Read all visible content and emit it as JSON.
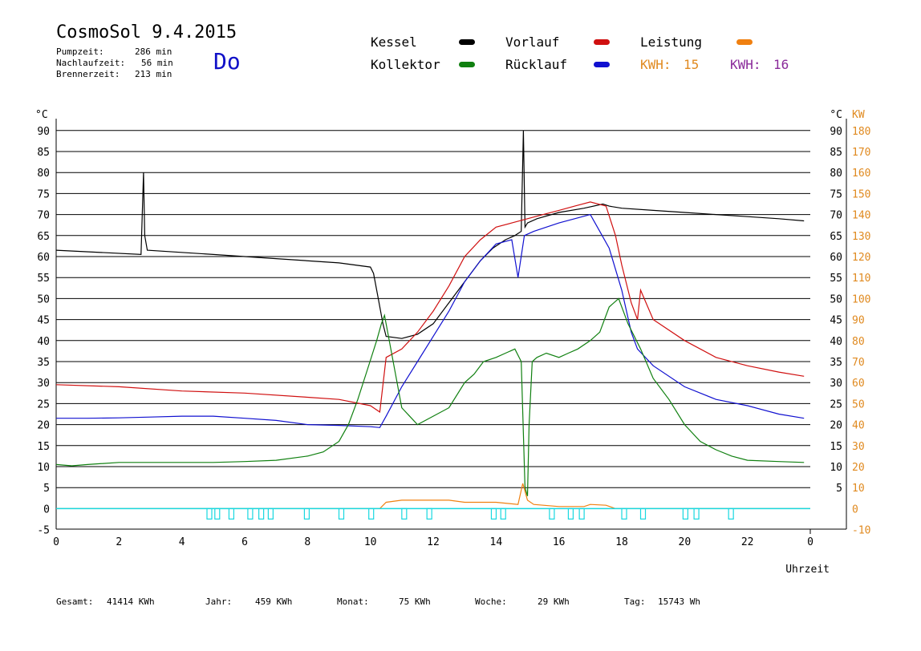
{
  "header": {
    "title": "CosmoSol 9.4.2015",
    "weekday": "Do",
    "stats": [
      {
        "label": "Pumpzeit:",
        "value": "286 min"
      },
      {
        "label": "Nachlaufzeit:",
        "value": "56 min"
      },
      {
        "label": "Brennerzeit:",
        "value": "213 min"
      }
    ]
  },
  "legend": {
    "items": [
      {
        "label": "Kessel",
        "color": "#000000"
      },
      {
        "label": "Kollektor",
        "color": "#108010"
      },
      {
        "label": "Vorlauf",
        "color": "#d01010"
      },
      {
        "label": "Rücklauf",
        "color": "#1010d0"
      },
      {
        "label": "Leistung",
        "color": "#f08010"
      }
    ],
    "kwh": [
      {
        "label": "KWH:",
        "value": "15",
        "color": "#e08a20"
      },
      {
        "label": "KWH:",
        "value": "16",
        "color": "#8a2a9a"
      }
    ]
  },
  "footer": {
    "items": [
      {
        "label": "Gesamt:",
        "value": "41414 KWh"
      },
      {
        "label": "Jahr:",
        "value": "459 KWh"
      },
      {
        "label": "Monat:",
        "value": "75 KWh"
      },
      {
        "label": "Woche:",
        "value": "29 KWh"
      },
      {
        "label": "Tag:",
        "value": "15743 Wh"
      }
    ]
  },
  "chart_data": {
    "type": "line",
    "xlabel": "Uhrzeit",
    "ylabel_left": "°C",
    "ylabel_right_temp": "°C",
    "ylabel_right_power": "KW",
    "xlim": [
      0,
      24
    ],
    "ylim": [
      -5,
      93
    ],
    "x_ticks": [
      "0",
      "2",
      "4",
      "6",
      "8",
      "10",
      "12",
      "14",
      "16",
      "18",
      "20",
      "22",
      "0"
    ],
    "y_ticks_left": [
      "-5",
      "0",
      "5",
      "10",
      "15",
      "20",
      "25",
      "30",
      "35",
      "40",
      "45",
      "50",
      "55",
      "60",
      "65",
      "70",
      "75",
      "80",
      "85",
      "90"
    ],
    "y_ticks_right_temp": [
      "5",
      "10",
      "15",
      "20",
      "25",
      "30",
      "35",
      "40",
      "45",
      "50",
      "55",
      "60",
      "65",
      "70",
      "75",
      "80",
      "85",
      "90"
    ],
    "y_ticks_right_power": [
      "-10",
      "0",
      "10",
      "20",
      "30",
      "40",
      "50",
      "60",
      "70",
      "80",
      "90",
      "100",
      "110",
      "120",
      "130",
      "140",
      "150",
      "160",
      "170",
      "180"
    ],
    "grid": true,
    "series": [
      {
        "name": "Kessel",
        "color": "#000000",
        "x": [
          0,
          2.7,
          2.78,
          2.82,
          2.9,
          5,
          7,
          9,
          10,
          10.1,
          10.25,
          10.4,
          10.5,
          11,
          11.5,
          12,
          12.5,
          13,
          13.5,
          13.9,
          14.3,
          14.6,
          14.8,
          14.87,
          14.92,
          15,
          15.3,
          16,
          16.8,
          17.4,
          17.6,
          18,
          19,
          20,
          21,
          22,
          23,
          23.8
        ],
        "y": [
          61.5,
          60.5,
          80,
          65,
          61.5,
          60.5,
          59.5,
          58.5,
          57.5,
          56,
          50,
          44,
          41,
          40.5,
          41.5,
          44,
          49,
          54,
          59,
          62,
          64,
          65,
          66,
          90,
          67,
          68,
          69,
          70.5,
          71.5,
          72.5,
          72,
          71.5,
          71,
          70.5,
          70,
          69.5,
          69,
          68.5
        ]
      },
      {
        "name": "Vorlauf",
        "color": "#d01010",
        "x": [
          0,
          2,
          4,
          6,
          8,
          9,
          10,
          10.3,
          10.5,
          11,
          11.5,
          12,
          12.5,
          13,
          13.5,
          14,
          14.5,
          15,
          15.5,
          16,
          16.5,
          17,
          17.5,
          17.8,
          18,
          18.3,
          18.5,
          18.6,
          19,
          20,
          21,
          22,
          23,
          23.8
        ],
        "y": [
          29.5,
          29,
          28,
          27.5,
          26.5,
          26,
          24.5,
          23,
          36,
          38,
          42,
          47,
          53,
          60,
          64,
          67,
          68,
          69,
          70,
          71,
          72,
          73,
          72,
          65,
          58,
          49,
          45,
          52,
          45,
          40,
          36,
          34,
          32.5,
          31.5
        ]
      },
      {
        "name": "Rücklauf",
        "color": "#1010d0",
        "x": [
          0,
          1,
          2,
          3,
          4,
          5,
          6,
          7,
          8,
          9,
          10,
          10.3,
          10.5,
          11,
          11.5,
          12,
          12.5,
          13,
          13.5,
          14,
          14.5,
          14.7,
          14.9,
          15.2,
          16,
          16.5,
          17,
          17.3,
          17.6,
          18,
          18.3,
          18.5,
          19,
          20,
          21,
          22,
          23,
          23.8
        ],
        "y": [
          21.5,
          21.5,
          21.6,
          21.8,
          22,
          22,
          21.5,
          21,
          20,
          19.8,
          19.5,
          19.3,
          22,
          29,
          35,
          41,
          47,
          54,
          59,
          63,
          64,
          55,
          65,
          66,
          68,
          69,
          70,
          66,
          62,
          52,
          42,
          38,
          34,
          29,
          26,
          24.5,
          22.5,
          21.5
        ]
      },
      {
        "name": "Kollektor",
        "color": "#108010",
        "x": [
          0,
          0.5,
          1,
          2,
          3,
          4,
          5,
          6,
          7,
          8,
          8.5,
          9,
          9.3,
          9.6,
          9.9,
          10.2,
          10.35,
          10.45,
          10.6,
          11,
          11.5,
          12,
          12.5,
          13,
          13.3,
          13.6,
          14,
          14.3,
          14.6,
          14.8,
          14.92,
          15,
          15.05,
          15.15,
          15.3,
          15.6,
          16,
          16.3,
          16.6,
          17,
          17.3,
          17.6,
          17.9,
          18.2,
          18.6,
          19,
          19.5,
          20,
          20.5,
          21,
          21.5,
          22,
          23,
          23.8
        ],
        "y": [
          10.5,
          10.2,
          10.5,
          11,
          11,
          11,
          11,
          11.2,
          11.5,
          12.5,
          13.5,
          16,
          20,
          26,
          33,
          40,
          44,
          46,
          40,
          24,
          20,
          22,
          24,
          30,
          32,
          35,
          36,
          37,
          38,
          35,
          5,
          3,
          20,
          35,
          36,
          37,
          36,
          37,
          38,
          40,
          42,
          48,
          50,
          44,
          38,
          31,
          26,
          20,
          16,
          14,
          12.5,
          11.5,
          11.2,
          11
        ]
      },
      {
        "name": "Leistung",
        "color": "#f08010",
        "x": [
          0,
          10.3,
          10.5,
          11,
          12,
          12.5,
          13,
          14,
          14.7,
          14.85,
          15,
          15.2,
          16,
          16.8,
          17,
          17.5,
          17.8,
          24
        ],
        "y": [
          0,
          0,
          1.5,
          2,
          2,
          2,
          1.5,
          1.5,
          1,
          6,
          2,
          1,
          0.5,
          0.5,
          1,
          0.8,
          0,
          0
        ]
      }
    ],
    "pump_line_y": 0,
    "pump_markers_x": [
      4.8,
      5.05,
      5.5,
      6.1,
      6.45,
      6.75,
      7.9,
      9.0,
      9.95,
      11.0,
      11.8,
      13.85,
      14.15,
      15.7,
      16.3,
      16.65,
      18.0,
      18.6,
      19.95,
      20.3,
      21.4
    ]
  }
}
